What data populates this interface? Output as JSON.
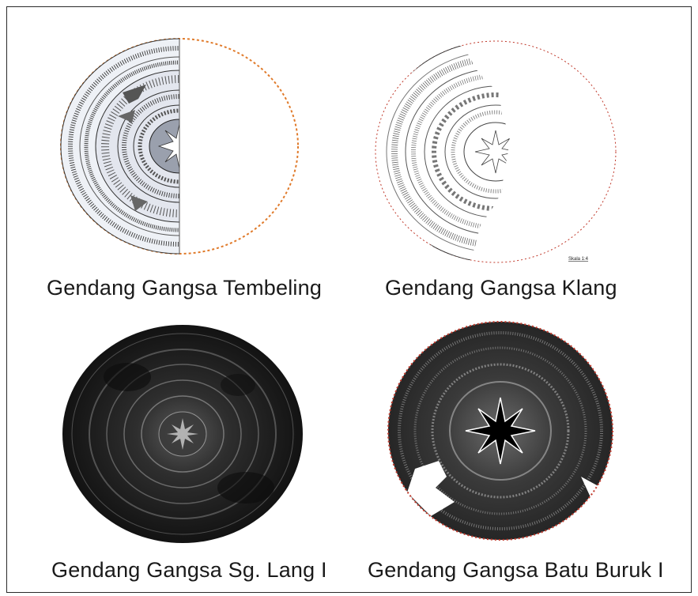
{
  "panels": [
    {
      "caption": "Gendang Gangsa Tembeling"
    },
    {
      "caption": "Gendang Gangsa Klang",
      "scale_label": "Skala 1:4"
    },
    {
      "caption": "Gendang Gangsa Sg. Lang I"
    },
    {
      "caption": "Gendang Gangsa Batu Buruk I"
    }
  ],
  "colors": {
    "orange_outline": "#e07a2a",
    "red_outline": "#c0392b",
    "line_drawing": "#3a3a3a",
    "dark_photo": "#1c1c1c"
  }
}
